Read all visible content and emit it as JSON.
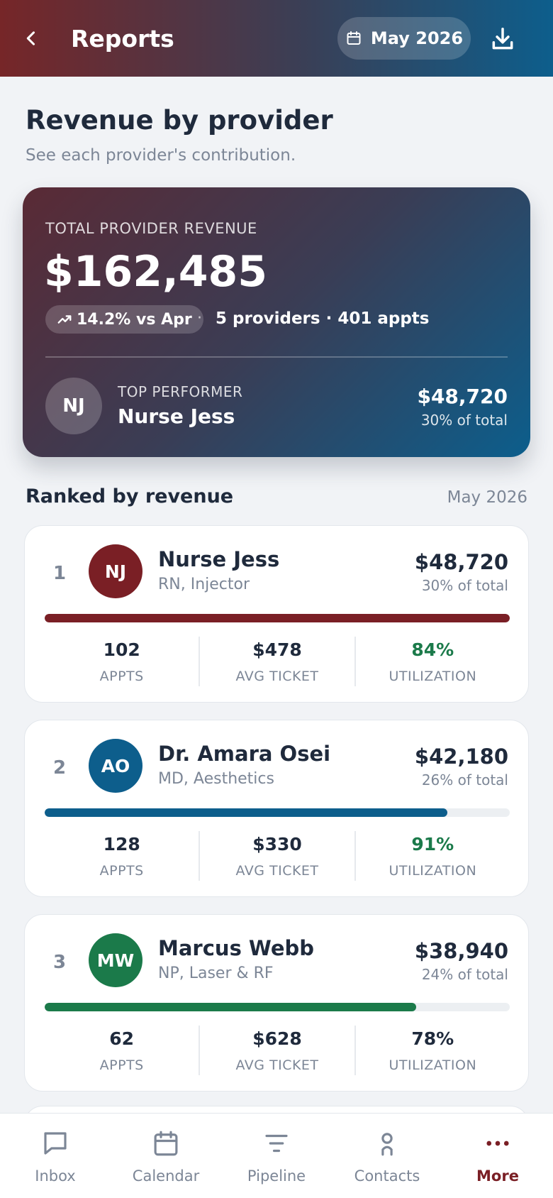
{
  "header": {
    "title": "Reports",
    "period": "May 2026"
  },
  "page": {
    "title": "Revenue by provider",
    "subtitle": "See each provider's contribution."
  },
  "summary": {
    "label": "TOTAL PROVIDER REVENUE",
    "amount": "$162,485",
    "trend": "14.2% vs Apr",
    "separator": "·",
    "meta": "5 providers · 401 appts",
    "top_label": "TOP PERFORMER",
    "top_initials": "NJ",
    "top_name": "Nurse Jess",
    "top_amount": "$48,720",
    "top_share": "30% of total"
  },
  "section": {
    "title": "Ranked by revenue",
    "period": "May 2026"
  },
  "providers": [
    {
      "rank": "1",
      "initials": "NJ",
      "name": "Nurse Jess",
      "role": "RN, Injector",
      "amount": "$48,720",
      "share": "30% of total",
      "bar_fraction": 1.0,
      "color": "#7a1f25",
      "appts": "102",
      "avg_ticket": "$478",
      "utilization": "84%",
      "util_good": true
    },
    {
      "rank": "2",
      "initials": "AO",
      "name": "Dr. Amara Osei",
      "role": "MD, Aesthetics",
      "amount": "$42,180",
      "share": "26% of total",
      "bar_fraction": 0.866,
      "color": "#0d5e8c",
      "appts": "128",
      "avg_ticket": "$330",
      "utilization": "91%",
      "util_good": true
    },
    {
      "rank": "3",
      "initials": "MW",
      "name": "Marcus Webb",
      "role": "NP, Laser & RF",
      "amount": "$38,940",
      "share": "24% of total",
      "bar_fraction": 0.799,
      "color": "#1b7a4a",
      "appts": "62",
      "avg_ticket": "$628",
      "utilization": "78%",
      "util_good": false
    }
  ],
  "stat_labels": {
    "appts": "APPTS",
    "avg_ticket": "AVG TICKET",
    "utilization": "UTILIZATION"
  },
  "nav": [
    {
      "label": "Inbox",
      "icon": "chat-icon",
      "active": false
    },
    {
      "label": "Calendar",
      "icon": "calendar-icon",
      "active": false
    },
    {
      "label": "Pipeline",
      "icon": "filter-icon",
      "active": false
    },
    {
      "label": "Contacts",
      "icon": "person-icon",
      "active": false
    },
    {
      "label": "More",
      "icon": "more-dots-icon",
      "active": true
    }
  ]
}
